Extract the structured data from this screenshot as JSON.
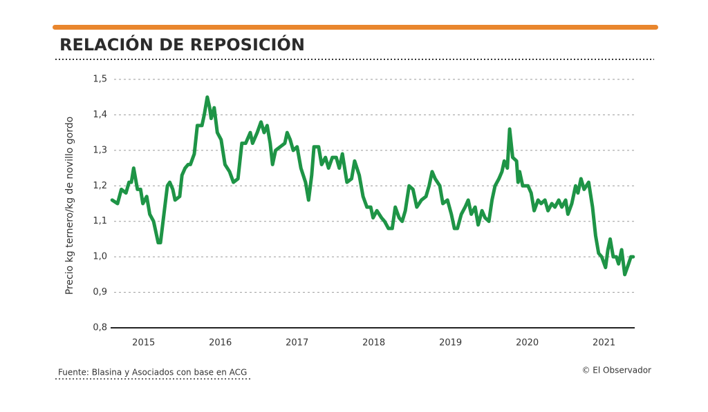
{
  "chart_data": {
    "type": "line",
    "title": "RELACIÓN DE REPOSICIÓN",
    "y_label": "Precio kg ternero/kg de novillo gordo",
    "source": "Fuente: Blasina y Asociados con base en ACG",
    "credit": "© El Observador",
    "x": [
      2014.59,
      2014.66,
      2014.71,
      2014.77,
      2014.81,
      2014.84,
      2014.87,
      2014.92,
      2014.96,
      2014.99,
      2015.04,
      2015.08,
      2015.13,
      2015.19,
      2015.22,
      2015.27,
      2015.31,
      2015.34,
      2015.38,
      2015.41,
      2015.47,
      2015.5,
      2015.54,
      2015.58,
      2015.61,
      2015.66,
      2015.7,
      2015.76,
      2015.79,
      2015.83,
      2015.86,
      2015.88,
      2015.92,
      2015.96,
      2016.01,
      2016.06,
      2016.12,
      2016.17,
      2016.23,
      2016.28,
      2016.33,
      2016.39,
      2016.42,
      2016.48,
      2016.53,
      2016.57,
      2016.61,
      2016.65,
      2016.68,
      2016.72,
      2016.78,
      2016.84,
      2016.87,
      2016.91,
      2016.95,
      2017.0,
      2017.05,
      2017.11,
      2017.15,
      2017.19,
      2017.22,
      2017.28,
      2017.32,
      2017.37,
      2017.41,
      2017.46,
      2017.51,
      2017.55,
      2017.59,
      2017.65,
      2017.71,
      2017.75,
      2017.81,
      2017.86,
      2017.91,
      2017.96,
      2017.99,
      2018.04,
      2018.1,
      2018.14,
      2018.19,
      2018.24,
      2018.28,
      2018.33,
      2018.37,
      2018.41,
      2018.46,
      2018.51,
      2018.56,
      2018.62,
      2018.68,
      2018.72,
      2018.76,
      2018.8,
      2018.86,
      2018.9,
      2018.96,
      2019.01,
      2019.05,
      2019.09,
      2019.14,
      2019.19,
      2019.23,
      2019.27,
      2019.32,
      2019.36,
      2019.41,
      2019.45,
      2019.5,
      2019.54,
      2019.58,
      2019.63,
      2019.67,
      2019.7,
      2019.74,
      2019.77,
      2019.81,
      2019.86,
      2019.88,
      2019.9,
      2019.94,
      2020.01,
      2020.05,
      2020.09,
      2020.14,
      2020.18,
      2020.23,
      2020.27,
      2020.32,
      2020.36,
      2020.41,
      2020.45,
      2020.5,
      2020.53,
      2020.58,
      2020.63,
      2020.66,
      2020.7,
      2020.74,
      2020.8,
      2020.85,
      2020.89,
      2020.93,
      2020.97,
      2021.02,
      2021.05,
      2021.08,
      2021.12,
      2021.16,
      2021.19,
      2021.23,
      2021.27,
      2021.32,
      2021.35,
      2021.38
    ],
    "series": [
      {
        "name": "Relación de reposición",
        "color": "#1e9446",
        "values": [
          1.16,
          1.15,
          1.19,
          1.18,
          1.21,
          1.21,
          1.25,
          1.19,
          1.19,
          1.15,
          1.17,
          1.12,
          1.1,
          1.04,
          1.04,
          1.13,
          1.2,
          1.21,
          1.19,
          1.16,
          1.17,
          1.23,
          1.25,
          1.26,
          1.26,
          1.29,
          1.37,
          1.37,
          1.4,
          1.45,
          1.42,
          1.39,
          1.42,
          1.35,
          1.33,
          1.26,
          1.24,
          1.21,
          1.22,
          1.32,
          1.32,
          1.35,
          1.32,
          1.35,
          1.38,
          1.35,
          1.37,
          1.32,
          1.26,
          1.3,
          1.31,
          1.32,
          1.35,
          1.33,
          1.3,
          1.31,
          1.25,
          1.21,
          1.16,
          1.23,
          1.31,
          1.31,
          1.26,
          1.28,
          1.25,
          1.28,
          1.28,
          1.25,
          1.29,
          1.21,
          1.22,
          1.27,
          1.23,
          1.17,
          1.14,
          1.14,
          1.11,
          1.13,
          1.11,
          1.1,
          1.08,
          1.08,
          1.14,
          1.11,
          1.1,
          1.13,
          1.2,
          1.19,
          1.14,
          1.16,
          1.17,
          1.2,
          1.24,
          1.22,
          1.2,
          1.15,
          1.16,
          1.12,
          1.08,
          1.08,
          1.12,
          1.14,
          1.16,
          1.12,
          1.14,
          1.09,
          1.13,
          1.11,
          1.1,
          1.16,
          1.2,
          1.22,
          1.24,
          1.27,
          1.25,
          1.36,
          1.28,
          1.27,
          1.21,
          1.24,
          1.2,
          1.2,
          1.18,
          1.13,
          1.16,
          1.15,
          1.16,
          1.13,
          1.15,
          1.14,
          1.16,
          1.14,
          1.16,
          1.12,
          1.15,
          1.2,
          1.18,
          1.22,
          1.19,
          1.21,
          1.14,
          1.06,
          1.01,
          1.0,
          0.97,
          1.02,
          1.05,
          1.0,
          1.0,
          0.98,
          1.02,
          0.95,
          0.98,
          1.0,
          1.0
        ]
      }
    ],
    "xlim": [
      2014.57,
      2021.4
    ],
    "xticks": [
      2015,
      2016,
      2017,
      2018,
      2019,
      2020,
      2021
    ],
    "ylim": [
      0.8,
      1.5
    ],
    "yticks": [
      {
        "value": 0.8,
        "label": "0,8"
      },
      {
        "value": 0.9,
        "label": "0,9"
      },
      {
        "value": 1.0,
        "label": "1,0"
      },
      {
        "value": 1.1,
        "label": "1,1"
      },
      {
        "value": 1.2,
        "label": "1,2"
      },
      {
        "value": 1.3,
        "label": "1,3"
      },
      {
        "value": 1.4,
        "label": "1,4"
      },
      {
        "value": 1.5,
        "label": "1,5"
      }
    ],
    "grid": true
  }
}
